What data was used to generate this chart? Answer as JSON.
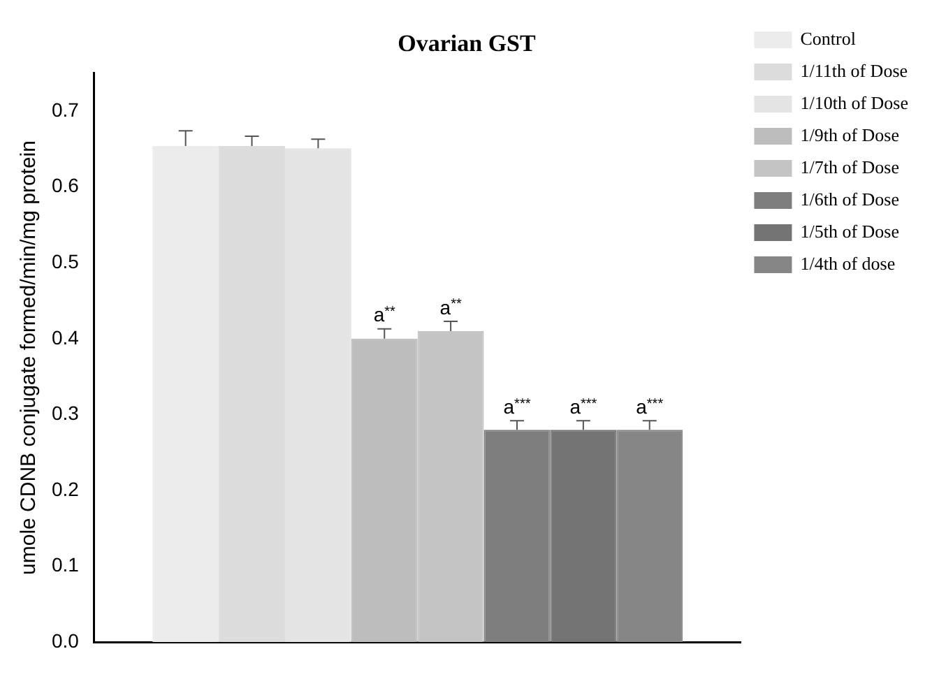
{
  "chart_data": {
    "type": "bar",
    "title": "Ovarian GST",
    "ylabel": "umole CDNB conjugate formed/min/mg protein",
    "categories": [
      null
    ],
    "series": [
      {
        "name": "Control",
        "color": "#ececec",
        "values": [
          0.654
        ],
        "errors": [
          [
            0.654,
            0.674
          ]
        ]
      },
      {
        "name": "1/11th of Dose",
        "color": "#dcdcdc",
        "values": [
          0.654
        ],
        "errors": [
          [
            0.654,
            0.667
          ]
        ]
      },
      {
        "name": "1/10th of Dose",
        "color": "#e4e4e4",
        "values": [
          0.651
        ],
        "errors": [
          [
            0.651,
            0.663
          ]
        ]
      },
      {
        "name": "1/9th of Dose",
        "color": "#bdbdbd",
        "values": [
          0.4
        ],
        "errors": [
          [
            0.4,
            0.413
          ]
        ]
      },
      {
        "name": "1/7th of Dose",
        "color": "#c4c4c4",
        "values": [
          0.41
        ],
        "errors": [
          [
            0.41,
            0.423
          ]
        ]
      },
      {
        "name": "1/6th of Dose",
        "color": "#7e7e7e",
        "values": [
          0.28
        ],
        "errors": [
          [
            0.28,
            0.292
          ]
        ]
      },
      {
        "name": "1/5th of Dose",
        "color": "#747474",
        "values": [
          0.28
        ],
        "errors": [
          [
            0.28,
            0.292
          ]
        ]
      },
      {
        "name": "1/4th of dose",
        "color": "#868686",
        "values": [
          0.28
        ],
        "errors": [
          [
            0.28,
            0.292
          ]
        ]
      }
    ],
    "annotations": [
      {
        "text": "a**",
        "y": 0.413
      },
      {
        "text": "a**",
        "y": 0.423
      },
      {
        "text": "a***",
        "y": 0.292
      },
      {
        "text": "a***",
        "y": 0.292
      },
      {
        "text": "a***",
        "y": 0.292
      }
    ],
    "ylim": [
      0,
      0.75
    ],
    "yticks": [
      {
        "value": 0,
        "label": "0.0"
      },
      0.1,
      0.2,
      0.3,
      0.4,
      0.5,
      0.6,
      0.7
    ],
    "grid": false,
    "legend": "top right"
  }
}
